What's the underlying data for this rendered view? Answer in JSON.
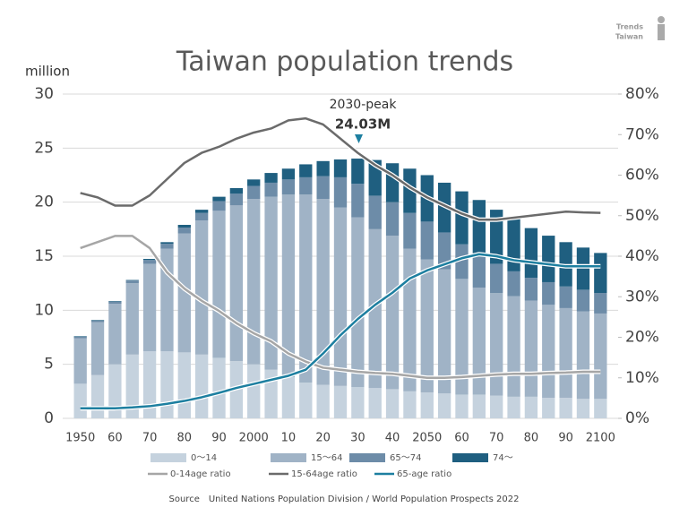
{
  "chart_data": {
    "type": "bar",
    "stacked": true,
    "title": "Taiwan population trends",
    "y_label": "million",
    "annotation": {
      "label": "2030-peak",
      "value_label": "24.03M"
    },
    "logo": [
      "Trends",
      "Taiwan"
    ],
    "source_label": "Source",
    "source": "United Nations Population Division / World Population Prospects 2022",
    "categories": [
      "1950",
      null,
      "60",
      null,
      "70",
      null,
      "80",
      null,
      "90",
      null,
      "2000",
      null,
      "10",
      null,
      "20",
      null,
      "30",
      null,
      "40",
      null,
      "2050",
      null,
      "60",
      null,
      "70",
      null,
      "80",
      null,
      "90",
      null,
      "2100"
    ],
    "ylim": [
      0,
      30
    ],
    "yticks": [
      0,
      5,
      10,
      15,
      20,
      25,
      30
    ],
    "y2lim": [
      0,
      80
    ],
    "y2ticks": [
      {
        "value": 0,
        "label": "0%"
      },
      {
        "value": 10,
        "label": "10%"
      },
      {
        "value": 20,
        "label": "20%"
      },
      {
        "value": 30,
        "label": "30%"
      },
      {
        "value": 40,
        "label": "40%"
      },
      {
        "value": 50,
        "label": "50%"
      },
      {
        "value": 60,
        "label": "60%"
      },
      {
        "value": 70,
        "label": "70%"
      },
      {
        "value": 80,
        "label": "80%"
      }
    ],
    "grid": true,
    "series": [
      {
        "name": "0～14",
        "type": "bar",
        "color": "#c5d2de",
        "values": [
          3.2,
          4.0,
          5.0,
          5.9,
          6.2,
          6.2,
          6.1,
          5.9,
          5.6,
          5.3,
          5.0,
          4.5,
          3.8,
          3.3,
          3.1,
          3.0,
          2.9,
          2.8,
          2.7,
          2.5,
          2.4,
          2.3,
          2.2,
          2.2,
          2.1,
          2.0,
          2.0,
          1.9,
          1.9,
          1.8,
          1.8
        ]
      },
      {
        "name": "15～64",
        "type": "bar",
        "color": "#a0b3c6",
        "values": [
          4.2,
          4.9,
          5.6,
          6.6,
          8.1,
          9.5,
          11.0,
          12.4,
          13.6,
          14.4,
          15.3,
          16.0,
          16.9,
          17.4,
          17.2,
          16.5,
          15.7,
          14.7,
          14.2,
          13.2,
          12.3,
          11.5,
          10.7,
          9.9,
          9.5,
          9.3,
          8.9,
          8.6,
          8.3,
          8.1,
          7.9
        ]
      },
      {
        "name": "65～74",
        "type": "bar",
        "color": "#6d8ca8",
        "values": [
          0.15,
          0.15,
          0.2,
          0.25,
          0.35,
          0.45,
          0.55,
          0.7,
          0.9,
          1.1,
          1.2,
          1.3,
          1.4,
          1.6,
          2.1,
          2.8,
          3.1,
          3.1,
          3.1,
          3.3,
          3.5,
          3.4,
          3.2,
          3.0,
          2.7,
          2.3,
          2.1,
          2.1,
          2.0,
          2.0,
          1.9
        ]
      },
      {
        "name": "74～",
        "type": "bar",
        "color": "#1f5f80",
        "values": [
          0.05,
          0.05,
          0.05,
          0.05,
          0.1,
          0.15,
          0.25,
          0.3,
          0.4,
          0.5,
          0.6,
          0.9,
          1.0,
          1.2,
          1.4,
          1.65,
          2.33,
          3.3,
          3.6,
          4.1,
          4.3,
          4.6,
          4.9,
          5.1,
          5.0,
          4.9,
          4.6,
          4.3,
          4.1,
          3.9,
          3.7
        ]
      },
      {
        "name": "0-14age ratio",
        "type": "line",
        "axis": "y2",
        "color": "#a6a6a6",
        "values": [
          42,
          43.5,
          45,
          45,
          42,
          36,
          32,
          29,
          26.5,
          23.5,
          21,
          19,
          16,
          14,
          12.5,
          12,
          11.5,
          11.2,
          11,
          10.5,
          10,
          10,
          10.2,
          10.5,
          10.8,
          11,
          11,
          11.2,
          11.3,
          11.5,
          11.5
        ]
      },
      {
        "name": "15-64age ratio",
        "type": "line",
        "axis": "y2",
        "color": "#6b6b6b",
        "values": [
          55.6,
          54.5,
          52.5,
          52.5,
          55,
          59,
          63,
          65.5,
          67,
          69,
          70.5,
          71.5,
          73.5,
          74,
          72.5,
          69,
          65.5,
          62.5,
          60,
          57,
          54.5,
          52.5,
          50.5,
          49,
          49,
          49.5,
          50,
          50.5,
          51,
          50.8,
          50.7
        ]
      },
      {
        "name": "65-age ratio",
        "type": "line",
        "axis": "y2",
        "color": "#1d7fa0",
        "values": [
          2.5,
          2.5,
          2.5,
          2.7,
          3,
          3.6,
          4.3,
          5.2,
          6.3,
          7.5,
          8.5,
          9.5,
          10.5,
          12,
          16,
          20.5,
          24.5,
          28,
          31,
          34.5,
          36.5,
          38,
          39.5,
          40.5,
          40,
          39,
          38.5,
          38,
          37.5,
          37.5,
          37.5
        ]
      }
    ]
  }
}
